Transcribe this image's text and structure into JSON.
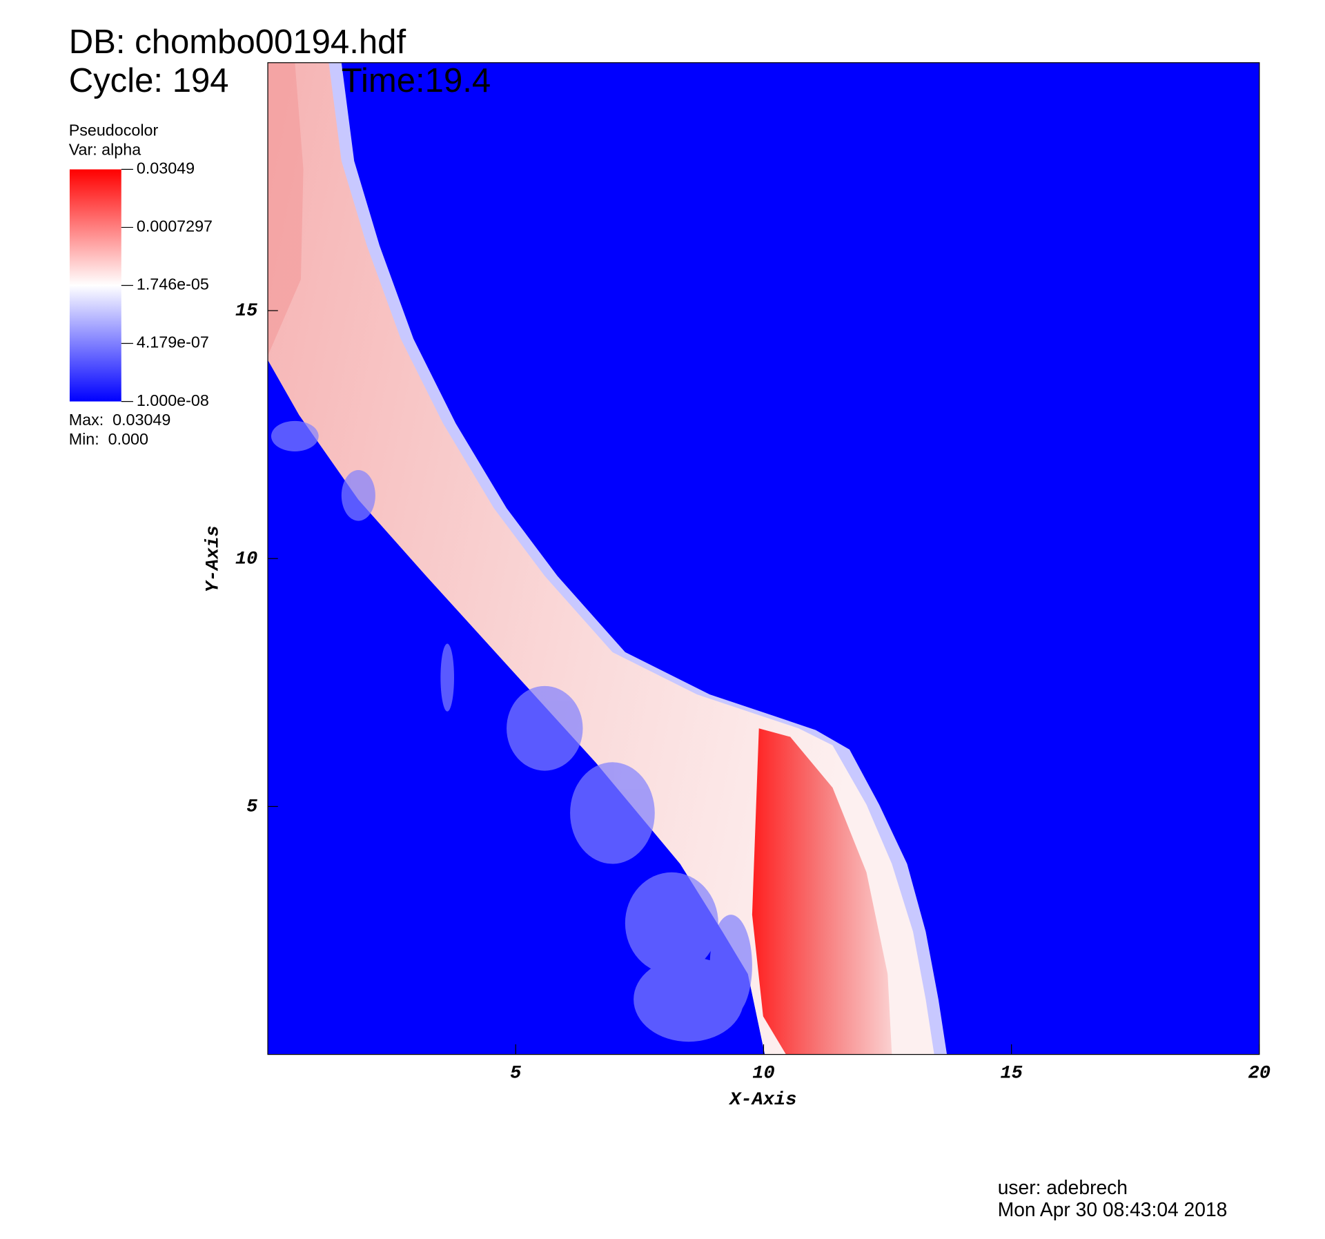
{
  "header": {
    "db": "DB: chombo00194.hdf",
    "cycle": "Cycle: 194",
    "time": "Time:19.4"
  },
  "chart_data": {
    "type": "pseudocolor",
    "plot": "Pseudocolor",
    "var": "Var: alpha",
    "max": "Max:  0.03049",
    "min": "Min:  0.000",
    "xlabel": "X-Axis",
    "ylabel": "Y-Axis",
    "xlim": [
      0,
      20
    ],
    "ylim": [
      0,
      20
    ],
    "xticks": [
      5,
      10,
      15,
      20
    ],
    "yticks": [
      5,
      10,
      15
    ],
    "colorbar": {
      "scale": "log",
      "lim": [
        1e-08,
        0.03049
      ],
      "ticks": [
        {
          "value": 1e-08,
          "label": "1.000e-08"
        },
        {
          "value": 4.179e-07,
          "label": "4.179e-07"
        },
        {
          "value": 1.746e-05,
          "label": "1.746e-05"
        },
        0.0007297,
        0.03049
      ],
      "colors": [
        "#0000ff",
        "#ffffff",
        "#ff0000"
      ]
    }
  },
  "footer": {
    "user": "user: adebrech",
    "date": "Mon Apr 30 08:43:04 2018"
  }
}
